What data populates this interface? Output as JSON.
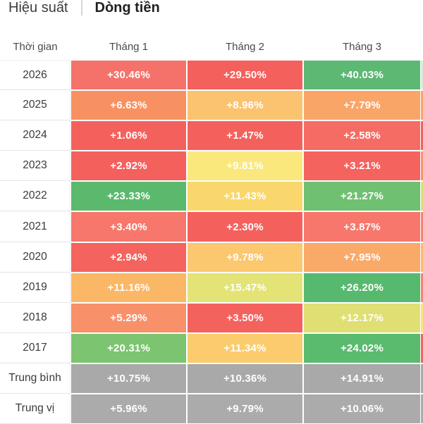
{
  "tabs": [
    {
      "label": "Hiệu suất",
      "active": false
    },
    {
      "label": "Dòng tiền",
      "active": true
    }
  ],
  "colors": {
    "page_background": "#ffffff",
    "summary_cell": "#a9a9a9",
    "cell_text": "#ffffff",
    "header_text": "#4a4a4a",
    "label_text": "#3a3a3a",
    "tab_divider": "#d6d6d6"
  },
  "table": {
    "columns": [
      "Thời gian",
      "Tháng 1",
      "Tháng 2",
      "Tháng 3"
    ],
    "rows": [
      {
        "label": "2026",
        "cells": [
          {
            "text": "+30.46%",
            "bg": "#F5726A"
          },
          {
            "text": "+29.50%",
            "bg": "#F4605C"
          },
          {
            "text": "+40.03%",
            "bg": "#5CB873"
          }
        ],
        "next_col_strip": "#D5EADB"
      },
      {
        "label": "2025",
        "cells": [
          {
            "text": "+6.63%",
            "bg": "#F89162"
          },
          {
            "text": "+8.96%",
            "bg": "#FBC36F"
          },
          {
            "text": "+7.79%",
            "bg": "#F9A568"
          }
        ],
        "next_col_strip": "#F9A568"
      },
      {
        "label": "2024",
        "cells": [
          {
            "text": "+1.06%",
            "bg": "#F4615D"
          },
          {
            "text": "+1.47%",
            "bg": "#F4615D"
          },
          {
            "text": "+2.58%",
            "bg": "#F56C64"
          }
        ],
        "next_col_strip": "#F4615D"
      },
      {
        "label": "2023",
        "cells": [
          {
            "text": "+2.92%",
            "bg": "#F4615D"
          },
          {
            "text": "+9.81%",
            "bg": "#FAE87D"
          },
          {
            "text": "+3.21%",
            "bg": "#F4635E"
          }
        ],
        "next_col_strip": "#F8956A"
      },
      {
        "label": "2022",
        "cells": [
          {
            "text": "+23.33%",
            "bg": "#5BB96D"
          },
          {
            "text": "+11.43%",
            "bg": "#F9D76C"
          },
          {
            "text": "+21.27%",
            "bg": "#70C071"
          }
        ],
        "next_col_strip": "#DCE074"
      },
      {
        "label": "2021",
        "cells": [
          {
            "text": "+3.40%",
            "bg": "#F7776C"
          },
          {
            "text": "+2.30%",
            "bg": "#F4615D"
          },
          {
            "text": "+3.87%",
            "bg": "#F7776C"
          }
        ],
        "next_col_strip": "#F8836F"
      },
      {
        "label": "2020",
        "cells": [
          {
            "text": "+2.94%",
            "bg": "#F4635E"
          },
          {
            "text": "+9.78%",
            "bg": "#FBC76F"
          },
          {
            "text": "+7.95%",
            "bg": "#F9A968"
          }
        ],
        "next_col_strip": "#FBBB6C"
      },
      {
        "label": "2019",
        "cells": [
          {
            "text": "+11.16%",
            "bg": "#FAB766"
          },
          {
            "text": "+15.47%",
            "bg": "#E3E376"
          },
          {
            "text": "+26.20%",
            "bg": "#57B96E"
          }
        ],
        "next_col_strip": "#F8806C"
      },
      {
        "label": "2018",
        "cells": [
          {
            "text": "+5.29%",
            "bg": "#F8906A"
          },
          {
            "text": "+3.50%",
            "bg": "#F4625E"
          },
          {
            "text": "+12.17%",
            "bg": "#DFDF74"
          }
        ],
        "next_col_strip": "#FBE27D"
      },
      {
        "label": "2017",
        "cells": [
          {
            "text": "+20.31%",
            "bg": "#7CC470"
          },
          {
            "text": "+11.34%",
            "bg": "#FACC6D"
          },
          {
            "text": "+24.02%",
            "bg": "#5ABA6E"
          }
        ],
        "next_col_strip": "#F4625E"
      },
      {
        "label": "Trung bình",
        "cells": [
          {
            "text": "+10.75%",
            "bg": "#A9A9A9"
          },
          {
            "text": "+10.36%",
            "bg": "#A9A9A9"
          },
          {
            "text": "+14.91%",
            "bg": "#A9A9A9"
          }
        ],
        "next_col_strip": "#A9A9A9"
      },
      {
        "label": "Trung vị",
        "cells": [
          {
            "text": "+5.96%",
            "bg": "#ABABAB"
          },
          {
            "text": "+9.79%",
            "bg": "#ABABAB"
          },
          {
            "text": "+10.06%",
            "bg": "#ABABAB"
          }
        ],
        "next_col_strip": "#ABABAB"
      }
    ]
  }
}
